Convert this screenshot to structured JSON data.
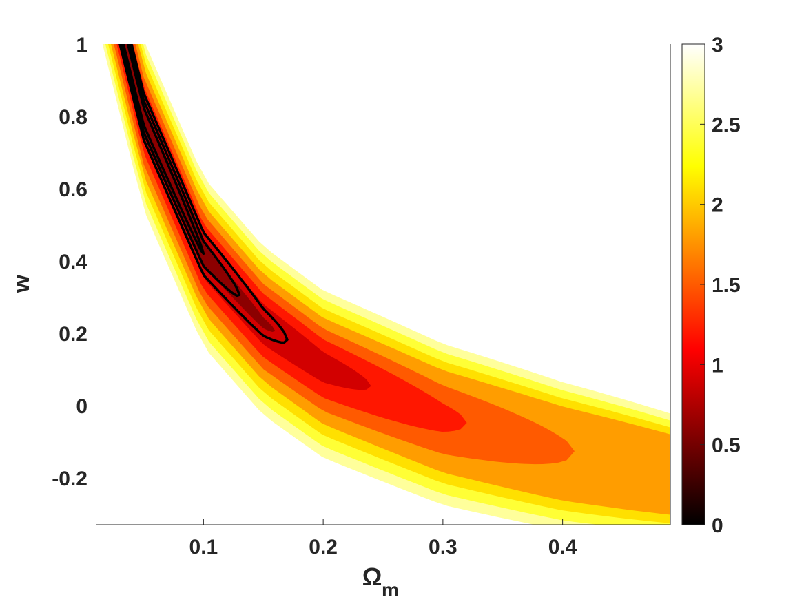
{
  "chart_data": {
    "type": "heatmap",
    "title": "",
    "xlabel": "Ω",
    "xlabel_sub": "m",
    "ylabel": "w",
    "xlim": [
      0.01,
      0.49
    ],
    "ylim": [
      -0.33,
      1.0
    ],
    "x_ticks": [
      {
        "value": 0.1,
        "label": "0.1"
      },
      {
        "value": 0.2,
        "label": "0.2"
      },
      {
        "value": 0.3,
        "label": "0.3"
      },
      {
        "value": 0.4,
        "label": "0.4"
      }
    ],
    "y_ticks": [
      {
        "value": 1.0,
        "label": "1"
      },
      {
        "value": 0.8,
        "label": "0.8"
      },
      {
        "value": 0.6,
        "label": "0.6"
      },
      {
        "value": 0.4,
        "label": "0.4"
      },
      {
        "value": 0.2,
        "label": "0.2"
      },
      {
        "value": 0.0,
        "label": "0"
      },
      {
        "value": -0.2,
        "label": "-0.2"
      }
    ],
    "colorbar": {
      "colormap": "hot",
      "range": [
        0,
        3
      ],
      "ticks": [
        {
          "value": 3,
          "label": "3"
        },
        {
          "value": 2.5,
          "label": "2.5"
        },
        {
          "value": 2,
          "label": "2"
        },
        {
          "value": 1.5,
          "label": "1.5"
        },
        {
          "value": 1,
          "label": "1"
        },
        {
          "value": 0.5,
          "label": "0.5"
        },
        {
          "value": 0,
          "label": "0"
        }
      ]
    },
    "ridge": [
      {
        "x": 0.035,
        "y": 1.0
      },
      {
        "x": 0.05,
        "y": 0.8
      },
      {
        "x": 0.1,
        "y": 0.42
      },
      {
        "x": 0.15,
        "y": 0.23
      },
      {
        "x": 0.2,
        "y": 0.11
      },
      {
        "x": 0.3,
        "y": -0.03
      },
      {
        "x": 0.4,
        "y": -0.12
      },
      {
        "x": 0.49,
        "y": -0.18
      }
    ],
    "filled_levels": [
      {
        "level": 0.6,
        "x_end": 0.16,
        "y_end": 0.21
      },
      {
        "level": 0.9,
        "x_end": 0.24,
        "y_end": 0.07
      },
      {
        "level": 1.2,
        "x_end": 0.32,
        "y_end": -0.04
      },
      {
        "level": 1.5,
        "x_end": 0.41,
        "y_end": -0.13
      },
      {
        "level": 1.8,
        "x_end": 0.49,
        "y_end": -0.2
      },
      {
        "level": 2.1,
        "x_end": 0.49,
        "y_end": -0.17
      },
      {
        "level": 2.4,
        "x_end": 0.49,
        "y_end": -0.14
      },
      {
        "level": 2.7,
        "x_end": 0.49,
        "y_end": -0.11
      }
    ],
    "contour_lines": [
      {
        "name": "inner",
        "x_end": 0.1,
        "y_end": 0.43
      },
      {
        "name": "middle",
        "x_end": 0.13,
        "y_end": 0.3
      },
      {
        "name": "outer",
        "x_end": 0.17,
        "y_end": 0.18
      }
    ],
    "grid": false,
    "legend": "none"
  }
}
